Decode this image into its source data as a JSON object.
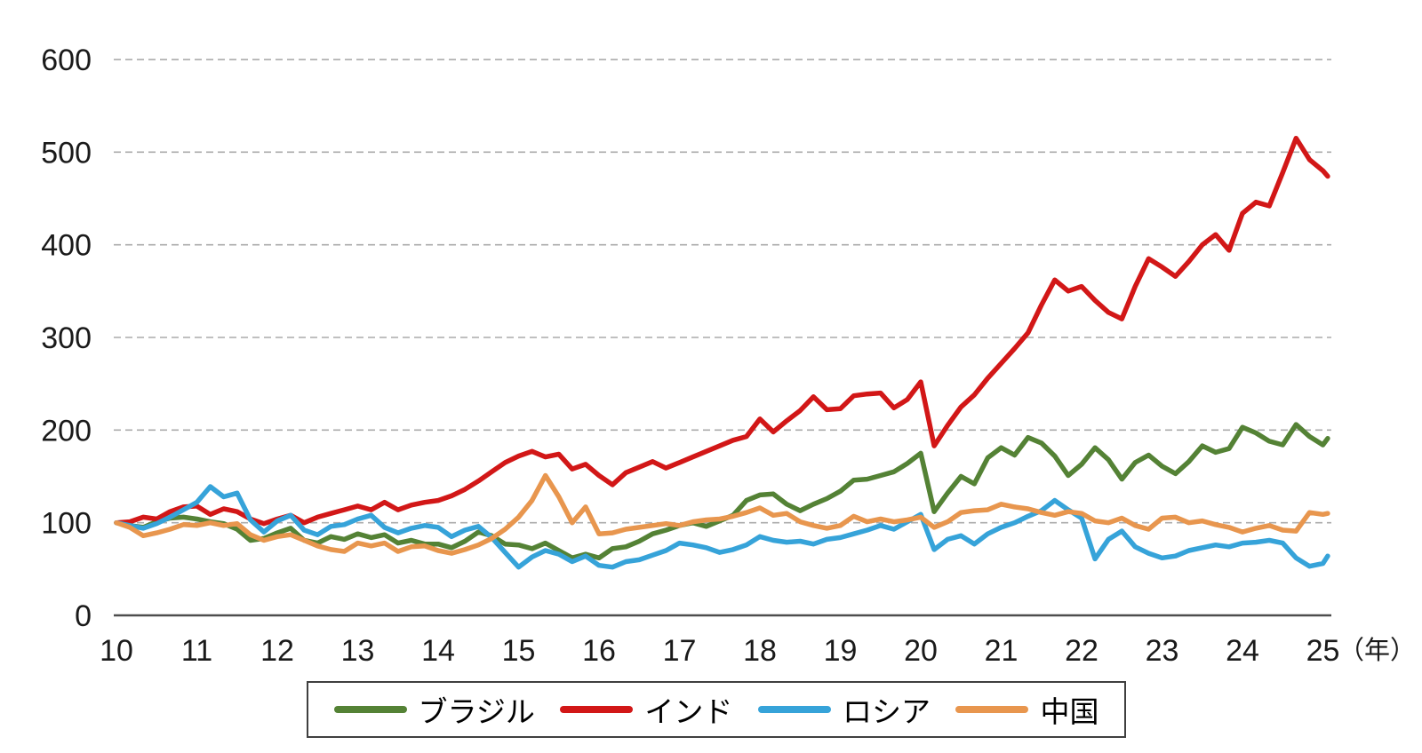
{
  "page": {
    "background": "#ffffff"
  },
  "chart_data": {
    "type": "line",
    "title": "",
    "description": "BRIC equity indices, indexed (start of 2010 = 100), monthly, 2010 - early 2025",
    "baseline_value": 100,
    "x_start": 10,
    "x_step_years": 0.1666667,
    "x_axis": {
      "ticks": [
        "10",
        "11",
        "12",
        "13",
        "14",
        "15",
        "16",
        "17",
        "18",
        "19",
        "20",
        "21",
        "22",
        "23",
        "24",
        "25"
      ],
      "tick_years": [
        10,
        11,
        12,
        13,
        14,
        15,
        16,
        17,
        18,
        19,
        20,
        21,
        22,
        23,
        24,
        25
      ],
      "unit_label": "（年）",
      "range": [
        10,
        25.1
      ]
    },
    "y_axis": {
      "ticks": [
        0,
        100,
        200,
        300,
        400,
        500,
        600
      ],
      "min": 0,
      "max": 600,
      "gridlines": "dashed",
      "gridline_color": "#ababab",
      "axis_line_color": "#4d4d4d"
    },
    "legend": {
      "position": "bottom-center",
      "border_color": "#3f3f3f"
    },
    "series": [
      {
        "id": "brazil",
        "name": "ブラジル",
        "color": "#548235",
        "values": [
          100,
          97,
          95,
          101,
          105,
          106,
          104,
          101,
          99,
          93,
          81,
          83,
          89,
          94,
          81,
          78,
          85,
          82,
          88,
          84,
          87,
          78,
          81,
          77,
          77,
          73,
          80,
          90,
          86,
          77,
          76,
          72,
          78,
          70,
          62,
          66,
          62,
          72,
          74,
          80,
          88,
          92,
          97,
          100,
          96,
          102,
          108,
          124,
          130,
          131,
          120,
          113,
          120,
          126,
          134,
          146,
          147,
          151,
          155,
          164,
          175,
          112,
          132,
          150,
          142,
          170,
          181,
          173,
          192,
          186,
          172,
          151,
          163,
          181,
          168,
          147,
          165,
          173,
          161,
          153,
          166,
          183,
          176,
          180,
          203,
          197,
          188,
          184,
          206,
          193,
          184,
          191
        ]
      },
      {
        "id": "india",
        "name": "インド",
        "color": "#d21717",
        "values": [
          100,
          101,
          106,
          104,
          112,
          117,
          118,
          109,
          115,
          112,
          104,
          99,
          104,
          108,
          100,
          106,
          110,
          114,
          118,
          114,
          122,
          114,
          119,
          122,
          124,
          129,
          136,
          145,
          155,
          165,
          172,
          177,
          171,
          174,
          158,
          163,
          151,
          141,
          154,
          160,
          166,
          159,
          165,
          171,
          177,
          183,
          189,
          193,
          212,
          198,
          210,
          221,
          236,
          222,
          223,
          237,
          239,
          240,
          224,
          233,
          252,
          183,
          205,
          225,
          238,
          256,
          272,
          288,
          305,
          335,
          362,
          350,
          355,
          340,
          327,
          320,
          355,
          385,
          376,
          366,
          382,
          400,
          411,
          394,
          434,
          446,
          442,
          478,
          515,
          492,
          480,
          474
        ]
      },
      {
        "id": "russia",
        "name": "ロシア",
        "color": "#36a3d9",
        "values": [
          100,
          97,
          94,
          99,
          106,
          114,
          122,
          139,
          128,
          132,
          103,
          90,
          102,
          108,
          92,
          87,
          96,
          98,
          104,
          108,
          95,
          89,
          94,
          97,
          95,
          85,
          92,
          96,
          84,
          68,
          52,
          63,
          70,
          66,
          58,
          64,
          54,
          52,
          58,
          60,
          65,
          70,
          78,
          76,
          73,
          68,
          71,
          76,
          85,
          81,
          79,
          80,
          77,
          82,
          84,
          88,
          92,
          97,
          93,
          101,
          109,
          71,
          82,
          86,
          77,
          88,
          95,
          100,
          107,
          113,
          124,
          114,
          105,
          61,
          82,
          91,
          74,
          67,
          62,
          64,
          70,
          73,
          76,
          74,
          78,
          79,
          81,
          78,
          62,
          53,
          56,
          64
        ]
      },
      {
        "id": "china",
        "name": "中国",
        "color": "#e8964e",
        "values": [
          100,
          95,
          86,
          89,
          93,
          98,
          97,
          100,
          97,
          99,
          87,
          81,
          85,
          87,
          81,
          75,
          71,
          69,
          78,
          75,
          78,
          69,
          74,
          75,
          70,
          67,
          71,
          76,
          83,
          93,
          106,
          124,
          151,
          128,
          100,
          117,
          88,
          89,
          93,
          95,
          97,
          99,
          97,
          101,
          103,
          104,
          107,
          111,
          116,
          108,
          110,
          101,
          97,
          94,
          97,
          107,
          101,
          104,
          101,
          103,
          106,
          95,
          101,
          111,
          113,
          114,
          120,
          117,
          115,
          111,
          108,
          112,
          110,
          102,
          100,
          105,
          97,
          93,
          105,
          106,
          100,
          102,
          98,
          95,
          90,
          94,
          97,
          92,
          91,
          111,
          109,
          110
        ]
      }
    ]
  }
}
